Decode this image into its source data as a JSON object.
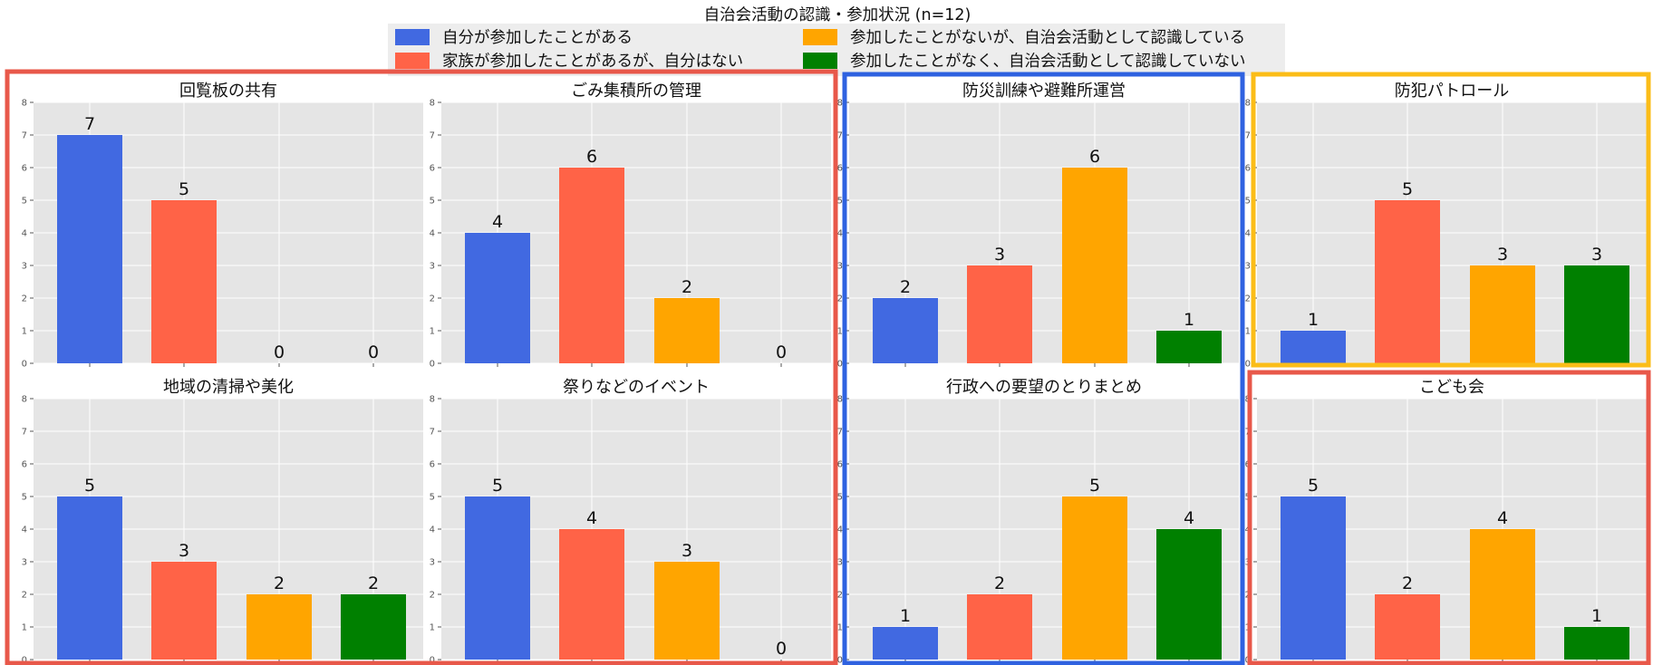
{
  "chart_data": {
    "type": "bar",
    "title": "自治会活動の認識・参加状況 (n=12)",
    "legend": {
      "placement": "top-center",
      "columns": 2,
      "entries": [
        {
          "name": "自分が参加したことがある",
          "color": "#4169e1"
        },
        {
          "name": "家族が参加したことがあるが、自分はない",
          "color": "#ff6347"
        },
        {
          "name": "参加したことがないが、自治会活動として認識している",
          "color": "#ffa500"
        },
        {
          "name": "参加したことがなく、自治会活動として認識していない",
          "color": "#008000"
        }
      ]
    },
    "ylim": [
      0,
      8
    ],
    "yticks": [
      0,
      1,
      2,
      3,
      4,
      5,
      6,
      7,
      8
    ],
    "grid": true,
    "background": "#e5e5e5",
    "panels": [
      {
        "title": "回覧板の共有",
        "values": [
          7,
          5,
          0,
          0
        ]
      },
      {
        "title": "ごみ集積所の管理",
        "values": [
          4,
          6,
          2,
          0
        ]
      },
      {
        "title": "防災訓練や避難所運営",
        "values": [
          2,
          3,
          6,
          1
        ]
      },
      {
        "title": "防犯パトロール",
        "values": [
          1,
          5,
          3,
          3
        ]
      },
      {
        "title": "地域の清掃や美化",
        "values": [
          5,
          3,
          2,
          2
        ]
      },
      {
        "title": "祭りなどのイベント",
        "values": [
          5,
          4,
          3,
          0
        ]
      },
      {
        "title": "行政への要望のとりまとめ",
        "values": [
          1,
          2,
          5,
          4
        ]
      },
      {
        "title": "こども会",
        "values": [
          5,
          2,
          4,
          1
        ]
      }
    ],
    "highlight_groups": [
      {
        "color": "#e8584a",
        "panels": [
          0,
          1,
          4,
          5
        ]
      },
      {
        "color": "#2f62e0",
        "panels": [
          2,
          6
        ]
      },
      {
        "color": "#fbbd18",
        "panels": [
          3
        ]
      },
      {
        "color": "#e8584a",
        "panels": [
          7
        ]
      }
    ]
  }
}
